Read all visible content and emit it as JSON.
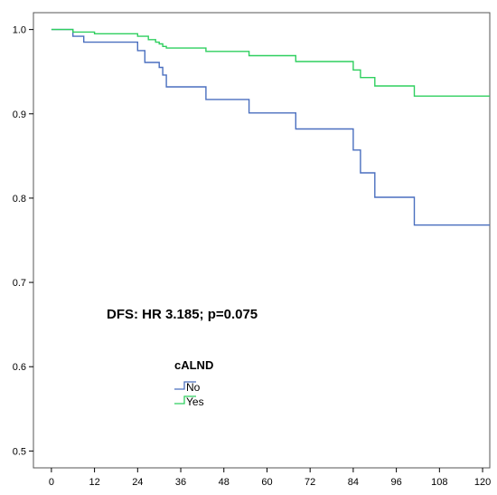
{
  "chart_data": {
    "type": "line",
    "subtype": "kaplan-meier-step",
    "title": "",
    "xlabel": "",
    "ylabel": "",
    "xlim": [
      -5,
      122
    ],
    "ylim": [
      0.48,
      1.02
    ],
    "xticks": [
      0,
      12,
      24,
      36,
      48,
      60,
      72,
      84,
      96,
      108,
      120
    ],
    "yticks": [
      0.5,
      0.6,
      0.7,
      0.8,
      0.9,
      1.0
    ],
    "ytick_labels": [
      "0.5",
      "0.6",
      "0.7",
      "0.8",
      "0.9",
      "1.0"
    ],
    "grid": false,
    "annotation": "DFS: HR 3.185; p=0.075",
    "legend": {
      "title": "cALND",
      "position": "lower-left"
    },
    "series": [
      {
        "name": "No",
        "color": "#4a6fbf",
        "x": [
          0,
          6,
          9,
          24,
          26,
          30,
          31,
          32,
          43,
          55,
          68,
          84,
          86,
          90,
          101,
          122
        ],
        "y": [
          1.0,
          0.992,
          0.985,
          0.975,
          0.961,
          0.955,
          0.946,
          0.932,
          0.917,
          0.901,
          0.882,
          0.857,
          0.83,
          0.801,
          0.768,
          0.768
        ]
      },
      {
        "name": "Yes",
        "color": "#2fcf5f",
        "x": [
          0,
          6,
          12,
          24,
          27,
          29,
          30,
          31,
          32,
          43,
          55,
          68,
          84,
          86,
          90,
          101,
          122
        ],
        "y": [
          1.0,
          0.997,
          0.995,
          0.992,
          0.988,
          0.985,
          0.983,
          0.98,
          0.978,
          0.974,
          0.969,
          0.962,
          0.952,
          0.943,
          0.933,
          0.921,
          0.921
        ]
      }
    ]
  }
}
